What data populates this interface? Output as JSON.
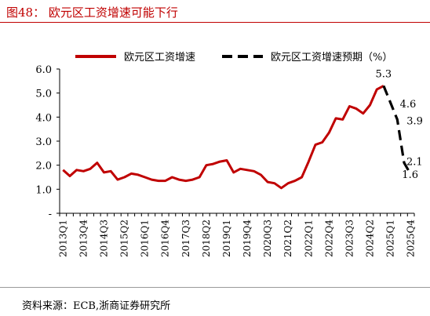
{
  "figure": {
    "title": "图48： 欧元区工资增速可能下行",
    "source": "资料来源：ECB,浙商证券研究所"
  },
  "chart_data": {
    "type": "line",
    "title": "",
    "xlabel": "",
    "ylabel": "",
    "ylim": [
      0,
      6
    ],
    "yticks": [
      "-",
      "1.0",
      "2.0",
      "3.0",
      "4.0",
      "5.0",
      "6.0"
    ],
    "grid": false,
    "legend_position": "top",
    "x_tick_labels": [
      "2013Q1",
      "2013Q4",
      "2014Q3",
      "2015Q2",
      "2016Q1",
      "2016Q4",
      "2017Q3",
      "2018Q2",
      "2019Q1",
      "2019Q4",
      "2020Q3",
      "2021Q2",
      "2022Q1",
      "2022Q4",
      "2023Q3",
      "2024Q2",
      "2025Q1",
      "2025Q4"
    ],
    "series": [
      {
        "name": "欧元区工资增速",
        "color": "#c00000",
        "style": "solid",
        "x": [
          "2013Q1",
          "2013Q2",
          "2013Q3",
          "2013Q4",
          "2014Q1",
          "2014Q2",
          "2014Q3",
          "2014Q4",
          "2015Q1",
          "2015Q2",
          "2015Q3",
          "2015Q4",
          "2016Q1",
          "2016Q2",
          "2016Q3",
          "2016Q4",
          "2017Q1",
          "2017Q2",
          "2017Q3",
          "2017Q4",
          "2018Q1",
          "2018Q2",
          "2018Q3",
          "2018Q4",
          "2019Q1",
          "2019Q2",
          "2019Q3",
          "2019Q4",
          "2020Q1",
          "2020Q2",
          "2020Q3",
          "2020Q4",
          "2021Q1",
          "2021Q2",
          "2021Q3",
          "2021Q4",
          "2022Q1",
          "2022Q2",
          "2022Q3",
          "2022Q4",
          "2023Q1",
          "2023Q2",
          "2023Q3",
          "2023Q4",
          "2024Q1",
          "2024Q2",
          "2024Q3",
          "2024Q4"
        ],
        "values": [
          1.8,
          1.55,
          1.8,
          1.75,
          1.85,
          2.1,
          1.7,
          1.75,
          1.4,
          1.5,
          1.65,
          1.6,
          1.5,
          1.4,
          1.35,
          1.35,
          1.5,
          1.4,
          1.35,
          1.4,
          1.5,
          2.0,
          2.05,
          2.15,
          2.2,
          1.7,
          1.85,
          1.8,
          1.75,
          1.6,
          1.3,
          1.25,
          1.05,
          1.25,
          1.35,
          1.5,
          2.15,
          2.85,
          2.95,
          3.35,
          3.95,
          3.9,
          4.45,
          4.35,
          4.15,
          4.5,
          5.15,
          5.3
        ]
      },
      {
        "name": "欧元区工资增速预期（%）",
        "color": "#000000",
        "style": "dashed",
        "x": [
          "2024Q4",
          "2025Q1",
          "2025Q2",
          "2025Q3",
          "2025Q4"
        ],
        "values": [
          5.3,
          4.6,
          3.9,
          2.1,
          1.6
        ]
      }
    ],
    "annotations": [
      {
        "x": "2024Q4",
        "y": 5.3,
        "text": "5.3"
      },
      {
        "x": "2025Q1",
        "y": 4.6,
        "text": "4.6"
      },
      {
        "x": "2025Q2",
        "y": 3.9,
        "text": "3.9"
      },
      {
        "x": "2025Q3",
        "y": 2.1,
        "text": "2.1"
      },
      {
        "x": "2025Q4",
        "y": 1.6,
        "text": "1.6"
      }
    ]
  }
}
